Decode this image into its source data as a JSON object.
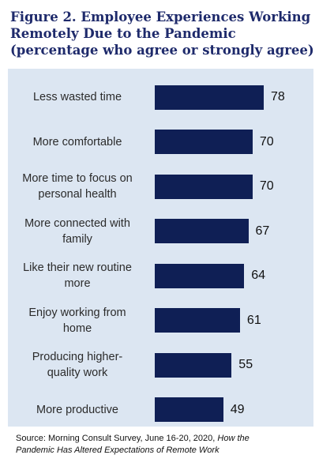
{
  "chart_data": {
    "type": "bar",
    "orientation": "horizontal",
    "title_lines": [
      "Figure 2. Employee Experiences Working",
      "Remotely Due to the Pandemic",
      "(percentage who agree or strongly agree)"
    ],
    "categories": [
      [
        "Less wasted time"
      ],
      [
        "More comfortable"
      ],
      [
        "More time to focus on",
        "personal health"
      ],
      [
        "More connected with",
        "family"
      ],
      [
        "Like their new routine",
        "more"
      ],
      [
        "Enjoy working from",
        "home"
      ],
      [
        "Producing higher-",
        "quality work"
      ],
      [
        "More productive"
      ]
    ],
    "values": [
      78,
      70,
      70,
      67,
      64,
      61,
      55,
      49
    ],
    "xlim": [
      0,
      100
    ],
    "colors": {
      "bar": "#0f1f55",
      "panel": "#dce6f2",
      "title": "#1e2a6b"
    }
  },
  "source": {
    "prefix": "Source: Morning Consult Survey, June 16-20, 2020,",
    "italic_line1": "How the",
    "italic_line2": "Pandemic Has Altered Expectations of Remote Work"
  }
}
